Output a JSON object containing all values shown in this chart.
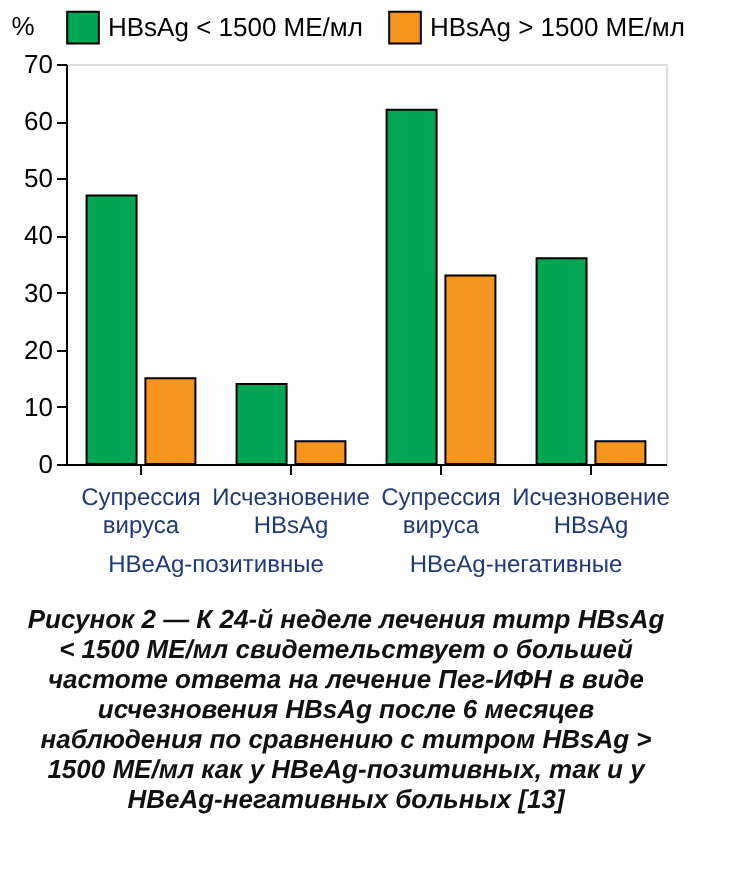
{
  "chart_data": {
    "type": "bar",
    "ylabel": "%",
    "categories": [
      "Супрессия вируса",
      "Исчезновение HBsAg",
      "Супрессия вируса",
      "Исчезновение HBsAg"
    ],
    "series": [
      {
        "name": "HBsAg < 1500 МЕ/мл",
        "color": "#00a651",
        "values": [
          47,
          14,
          62,
          36
        ]
      },
      {
        "name": "HBsAg > 1500 МЕ/мл",
        "color": "#f7941d",
        "values": [
          15,
          4,
          33,
          4
        ]
      }
    ],
    "ylim": [
      0,
      70
    ],
    "yticks": [
      0,
      10,
      20,
      30,
      40,
      50,
      60,
      70
    ],
    "grid": false,
    "legend": "top",
    "annotations": [
      "HBeAg-позитивные",
      "HBeAg-негативные",
      "Рисунок 2 — К 24-й неделе лечения титр HBsAg < 1500 МЕ/мл свидетельствует о большей частоте ответа на лечение Пег-ИФН в виде исчезновения HBsAg после 6 месяцев наблюдения по сравнению с титром HBsAg > 1500 МЕ/мл как у HBeAg-позитивных, так и у HBeAg-негативных больных [13]"
    ]
  }
}
